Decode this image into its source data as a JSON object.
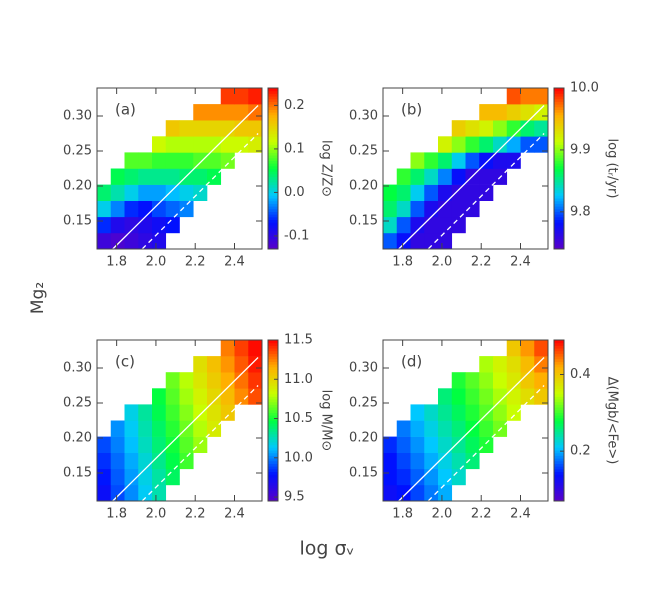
{
  "figure": {
    "xlabel": "log σᵥ",
    "ylabel": "Mg₂"
  },
  "chart_data": [
    {
      "type": "heatmap",
      "label": "(a)",
      "zlabel": "log Z/Z⊙",
      "colormap": [
        "#5a00c8",
        "#0010ff",
        "#00c8ff",
        "#00ff40",
        "#c8ff00",
        "#ffb000",
        "#ff0000"
      ],
      "xlim": [
        1.7,
        2.54
      ],
      "ylim": [
        0.11,
        0.34
      ],
      "xticks": [
        1.8,
        {
          "value": 2,
          "label": "2.0"
        },
        2.2,
        2.4
      ],
      "yticks": [
        0.15,
        {
          "value": 0.2,
          "label": "0.20"
        },
        0.25,
        {
          "value": 0.3,
          "label": "0.30"
        }
      ],
      "zlim": [
        -0.13,
        0.24
      ],
      "zticks": [
        -0.1,
        {
          "value": 0,
          "label": "0.0"
        },
        0.1,
        0.2
      ],
      "x_edges": [
        1.7,
        1.77,
        1.84,
        1.91,
        1.98,
        2.05,
        2.12,
        2.19,
        2.26,
        2.33,
        2.4,
        2.47,
        2.54
      ],
      "y_edges": [
        0.11,
        0.133,
        0.156,
        0.179,
        0.202,
        0.225,
        0.248,
        0.271,
        0.294,
        0.317,
        0.34
      ],
      "z": [
        [
          -0.11,
          -0.12,
          -0.11,
          -0.1,
          -0.09,
          null,
          null,
          null,
          null,
          null,
          null,
          null
        ],
        [
          -0.06,
          -0.09,
          -0.1,
          -0.09,
          -0.08,
          -0.07,
          null,
          null,
          null,
          null,
          null,
          null
        ],
        [
          0.0,
          -0.03,
          -0.06,
          -0.07,
          -0.05,
          -0.04,
          -0.03,
          null,
          null,
          null,
          null,
          null
        ],
        [
          0.04,
          0.02,
          0.0,
          -0.02,
          -0.02,
          -0.01,
          0.0,
          0.01,
          null,
          null,
          null,
          null
        ],
        [
          null,
          0.05,
          0.04,
          0.03,
          0.03,
          0.03,
          0.04,
          0.04,
          0.05,
          null,
          null,
          null
        ],
        [
          null,
          null,
          0.08,
          0.08,
          0.07,
          0.07,
          0.07,
          0.08,
          0.08,
          0.09,
          null,
          null
        ],
        [
          null,
          null,
          null,
          null,
          0.12,
          0.11,
          0.11,
          0.11,
          0.11,
          0.12,
          0.12,
          0.13
        ],
        [
          null,
          null,
          null,
          null,
          null,
          0.16,
          0.15,
          0.15,
          0.15,
          0.15,
          0.16,
          0.16
        ],
        [
          null,
          null,
          null,
          null,
          null,
          null,
          null,
          0.19,
          0.19,
          0.19,
          0.19,
          0.2
        ],
        [
          null,
          null,
          null,
          null,
          null,
          null,
          null,
          null,
          null,
          0.22,
          0.22,
          0.23
        ]
      ],
      "lines": [
        {
          "style": "solid",
          "x": [
            1.78,
            2.52
          ],
          "y": [
            0.11,
            0.315
          ]
        },
        {
          "style": "dashed",
          "x": [
            1.93,
            2.52
          ],
          "y": [
            0.11,
            0.275
          ]
        }
      ]
    },
    {
      "type": "heatmap",
      "label": "(b)",
      "zlabel": "log (tᵣ/yr)",
      "colormap": [
        "#5a00c8",
        "#0010ff",
        "#00c8ff",
        "#00ff40",
        "#c8ff00",
        "#ffb000",
        "#ff0000"
      ],
      "xlim": [
        1.7,
        2.54
      ],
      "ylim": [
        0.11,
        0.34
      ],
      "xticks": [
        1.8,
        {
          "value": 2,
          "label": "2.0"
        },
        2.2,
        2.4
      ],
      "yticks": [
        0.15,
        {
          "value": 0.2,
          "label": "0.20"
        },
        0.25,
        {
          "value": 0.3,
          "label": "0.30"
        }
      ],
      "zlim": [
        9.74,
        10.0
      ],
      "zticks": [
        9.8,
        9.9,
        {
          "value": 10,
          "label": "10.0"
        }
      ],
      "x_edges": [
        1.7,
        1.77,
        1.84,
        1.91,
        1.98,
        2.05,
        2.12,
        2.19,
        2.26,
        2.33,
        2.4,
        2.47,
        2.54
      ],
      "y_edges": [
        0.11,
        0.133,
        0.156,
        0.179,
        0.202,
        0.225,
        0.248,
        0.271,
        0.294,
        0.317,
        0.34
      ],
      "z": [
        [
          9.8,
          9.78,
          9.76,
          9.76,
          9.76,
          null,
          null,
          null,
          null,
          null,
          null,
          null
        ],
        [
          9.84,
          9.8,
          9.77,
          9.76,
          9.76,
          9.76,
          null,
          null,
          null,
          null,
          null,
          null
        ],
        [
          9.86,
          9.84,
          9.8,
          9.77,
          9.76,
          9.76,
          9.76,
          null,
          null,
          null,
          null,
          null
        ],
        [
          9.87,
          9.86,
          9.83,
          9.8,
          9.77,
          9.76,
          9.76,
          9.76,
          null,
          null,
          null,
          null
        ],
        [
          null,
          9.88,
          9.86,
          9.84,
          9.81,
          9.78,
          9.76,
          9.76,
          9.76,
          null,
          null,
          null
        ],
        [
          null,
          null,
          9.9,
          9.88,
          9.86,
          9.83,
          9.8,
          9.78,
          9.77,
          9.77,
          null,
          null
        ],
        [
          null,
          null,
          null,
          null,
          9.92,
          9.9,
          9.88,
          9.86,
          9.84,
          9.82,
          9.8,
          9.8
        ],
        [
          null,
          null,
          null,
          null,
          null,
          9.94,
          9.93,
          9.92,
          9.9,
          9.88,
          9.86,
          9.85
        ],
        [
          null,
          null,
          null,
          null,
          null,
          null,
          null,
          9.95,
          9.95,
          9.94,
          9.93,
          9.92
        ],
        [
          null,
          null,
          null,
          null,
          null,
          null,
          null,
          null,
          null,
          9.98,
          9.97,
          9.97
        ]
      ],
      "lines": [
        {
          "style": "solid",
          "x": [
            1.78,
            2.52
          ],
          "y": [
            0.11,
            0.315
          ]
        },
        {
          "style": "dashed",
          "x": [
            1.93,
            2.52
          ],
          "y": [
            0.11,
            0.275
          ]
        }
      ]
    },
    {
      "type": "heatmap",
      "label": "(c)",
      "zlabel": "log M/M⊙",
      "colormap": [
        "#5a00c8",
        "#0010ff",
        "#00c8ff",
        "#00ff40",
        "#c8ff00",
        "#ffb000",
        "#ff0000"
      ],
      "xlim": [
        1.7,
        2.54
      ],
      "ylim": [
        0.11,
        0.34
      ],
      "xticks": [
        1.8,
        {
          "value": 2,
          "label": "2.0"
        },
        2.2,
        2.4
      ],
      "yticks": [
        0.15,
        {
          "value": 0.2,
          "label": "0.20"
        },
        0.25,
        {
          "value": 0.3,
          "label": "0.30"
        }
      ],
      "zlim": [
        9.45,
        11.5
      ],
      "zticks": [
        9.5,
        {
          "value": 10,
          "label": "10.0"
        },
        10.5,
        {
          "value": 11,
          "label": "11.0"
        },
        11.5
      ],
      "x_edges": [
        1.7,
        1.77,
        1.84,
        1.91,
        1.98,
        2.05,
        2.12,
        2.19,
        2.26,
        2.33,
        2.4,
        2.47,
        2.54
      ],
      "y_edges": [
        0.11,
        0.133,
        0.156,
        0.179,
        0.202,
        0.225,
        0.248,
        0.271,
        0.294,
        0.317,
        0.34
      ],
      "z": [
        [
          9.75,
          9.9,
          10.02,
          10.15,
          10.28,
          null,
          null,
          null,
          null,
          null,
          null,
          null
        ],
        [
          9.8,
          9.93,
          10.05,
          10.18,
          10.3,
          10.42,
          null,
          null,
          null,
          null,
          null,
          null
        ],
        [
          9.85,
          9.96,
          10.08,
          10.21,
          10.34,
          10.46,
          10.58,
          null,
          null,
          null,
          null,
          null
        ],
        [
          9.9,
          10.0,
          10.12,
          10.25,
          10.38,
          10.5,
          10.62,
          10.74,
          null,
          null,
          null,
          null
        ],
        [
          null,
          10.03,
          10.15,
          10.28,
          10.41,
          10.54,
          10.66,
          10.78,
          10.9,
          null,
          null,
          null
        ],
        [
          null,
          null,
          10.18,
          10.31,
          10.45,
          10.58,
          10.7,
          10.82,
          10.94,
          11.06,
          null,
          null
        ],
        [
          null,
          null,
          null,
          null,
          10.48,
          10.62,
          10.75,
          10.87,
          10.99,
          11.11,
          11.23,
          11.35
        ],
        [
          null,
          null,
          null,
          null,
          null,
          10.66,
          10.79,
          10.92,
          11.04,
          11.16,
          11.28,
          11.4
        ],
        [
          null,
          null,
          null,
          null,
          null,
          null,
          null,
          10.96,
          11.09,
          11.21,
          11.33,
          11.45
        ],
        [
          null,
          null,
          null,
          null,
          null,
          null,
          null,
          null,
          null,
          11.26,
          11.38,
          11.48
        ]
      ],
      "lines": [
        {
          "style": "solid",
          "x": [
            1.78,
            2.52
          ],
          "y": [
            0.11,
            0.315
          ]
        },
        {
          "style": "dashed",
          "x": [
            1.93,
            2.52
          ],
          "y": [
            0.11,
            0.275
          ]
        }
      ]
    },
    {
      "type": "heatmap",
      "label": "(d)",
      "zlabel": "Δ(Mgb/<Fe>)",
      "colormap": [
        "#5a00c8",
        "#0010ff",
        "#00c8ff",
        "#00ff40",
        "#c8ff00",
        "#ffb000",
        "#ff0000"
      ],
      "xlim": [
        1.7,
        2.54
      ],
      "ylim": [
        0.11,
        0.34
      ],
      "xticks": [
        1.8,
        {
          "value": 2,
          "label": "2.0"
        },
        2.2,
        2.4
      ],
      "yticks": [
        0.15,
        {
          "value": 0.2,
          "label": "0.20"
        },
        0.25,
        {
          "value": 0.3,
          "label": "0.30"
        }
      ],
      "zlim": [
        0.07,
        0.49
      ],
      "zticks": [
        0.2,
        0.4
      ],
      "x_edges": [
        1.7,
        1.77,
        1.84,
        1.91,
        1.98,
        2.05,
        2.12,
        2.19,
        2.26,
        2.33,
        2.4,
        2.47,
        2.54
      ],
      "y_edges": [
        0.11,
        0.133,
        0.156,
        0.179,
        0.202,
        0.225,
        0.248,
        0.271,
        0.294,
        0.317,
        0.34
      ],
      "z": [
        [
          0.13,
          0.14,
          0.16,
          0.18,
          0.2,
          null,
          null,
          null,
          null,
          null,
          null,
          null
        ],
        [
          0.14,
          0.15,
          0.17,
          0.19,
          0.21,
          0.23,
          null,
          null,
          null,
          null,
          null,
          null
        ],
        [
          0.14,
          0.16,
          0.18,
          0.2,
          0.22,
          0.24,
          0.26,
          null,
          null,
          null,
          null,
          null
        ],
        [
          0.15,
          0.17,
          0.19,
          0.21,
          0.23,
          0.25,
          0.27,
          0.29,
          null,
          null,
          null,
          null
        ],
        [
          null,
          0.18,
          0.2,
          0.22,
          0.24,
          0.26,
          0.28,
          0.3,
          0.32,
          null,
          null,
          null
        ],
        [
          null,
          null,
          0.21,
          0.23,
          0.25,
          0.27,
          0.29,
          0.31,
          0.33,
          0.35,
          null,
          null
        ],
        [
          null,
          null,
          null,
          null,
          0.26,
          0.28,
          0.3,
          0.32,
          0.34,
          0.36,
          0.38,
          0.4
        ],
        [
          null,
          null,
          null,
          null,
          null,
          0.29,
          0.31,
          0.33,
          0.35,
          0.37,
          0.4,
          0.42
        ],
        [
          null,
          null,
          null,
          null,
          null,
          null,
          null,
          0.34,
          0.36,
          0.38,
          0.41,
          0.44
        ],
        [
          null,
          null,
          null,
          null,
          null,
          null,
          null,
          null,
          null,
          0.4,
          0.43,
          0.46
        ]
      ],
      "lines": [
        {
          "style": "solid",
          "x": [
            1.78,
            2.52
          ],
          "y": [
            0.11,
            0.315
          ]
        },
        {
          "style": "dashed",
          "x": [
            1.93,
            2.52
          ],
          "y": [
            0.11,
            0.275
          ]
        }
      ]
    }
  ]
}
